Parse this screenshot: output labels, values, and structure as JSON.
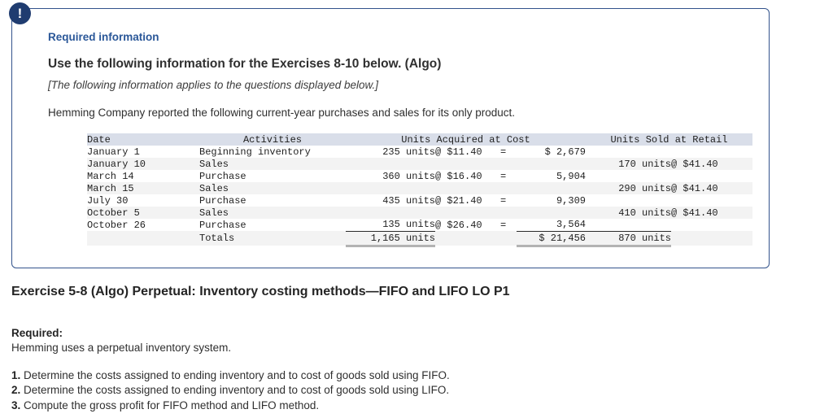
{
  "colors": {
    "accent_navy": "#33538c",
    "icon_navy": "#1f3c70",
    "heading_blue": "#2a5798",
    "table_header_bg": "#d9dee9",
    "stripe_bg": "#f3f3f3"
  },
  "callout": {
    "icon": "exclamation-icon",
    "icon_glyph": "!",
    "heading": "Required information",
    "title": "Use the following information for the Exercises 8-10 below. (Algo)",
    "note": "[The following information applies to the questions displayed below.]",
    "intro": "Hemming Company reported the following current-year purchases and sales for its only product."
  },
  "table": {
    "headers": {
      "date": "Date",
      "activities": "Activities",
      "acquired": "Units Acquired at Cost",
      "sold": "Units Sold at Retail"
    },
    "rows": [
      {
        "date": "January 1",
        "activity": "Beginning inventory",
        "units_acq": "235 units",
        "at_cost": "@ $11.40",
        "eq": "=",
        "amount": "$ 2,679",
        "units_sold": "",
        "at_retail": ""
      },
      {
        "date": "January 10",
        "activity": "Sales",
        "units_acq": "",
        "at_cost": "",
        "eq": "",
        "amount": "",
        "units_sold": "170 units",
        "at_retail": "@ $41.40"
      },
      {
        "date": "March 14",
        "activity": "Purchase",
        "units_acq": "360 units",
        "at_cost": "@ $16.40",
        "eq": "=",
        "amount": "5,904",
        "units_sold": "",
        "at_retail": ""
      },
      {
        "date": "March 15",
        "activity": "Sales",
        "units_acq": "",
        "at_cost": "",
        "eq": "",
        "amount": "",
        "units_sold": "290 units",
        "at_retail": "@ $41.40"
      },
      {
        "date": "July 30",
        "activity": "Purchase",
        "units_acq": "435 units",
        "at_cost": "@ $21.40",
        "eq": "=",
        "amount": "9,309",
        "units_sold": "",
        "at_retail": ""
      },
      {
        "date": "October 5",
        "activity": "Sales",
        "units_acq": "",
        "at_cost": "",
        "eq": "",
        "amount": "",
        "units_sold": "410 units",
        "at_retail": "@ $41.40"
      },
      {
        "date": "October 26",
        "activity": "Purchase",
        "units_acq": "135 units",
        "at_cost": "@ $26.40",
        "eq": "=",
        "amount": "3,564",
        "units_sold": "",
        "at_retail": "",
        "rules": "dark"
      },
      {
        "date": "",
        "activity": "Totals",
        "units_acq": "1,165 units",
        "at_cost": "",
        "eq": "",
        "amount": "$ 21,456",
        "units_sold": "870 units",
        "at_retail": "",
        "rules": "gray",
        "total": true
      }
    ]
  },
  "exercise": {
    "title": "Exercise 5-8 (Algo) Perpetual: Inventory costing methods—FIFO and LIFO LO P1",
    "required_label": "Required:",
    "required_text": "Hemming uses a perpetual inventory system.",
    "items": [
      {
        "num": "1.",
        "text": "Determine the costs assigned to ending inventory and to cost of goods sold using FIFO."
      },
      {
        "num": "2.",
        "text": "Determine the costs assigned to ending inventory and to cost of goods sold using LIFO."
      },
      {
        "num": "3.",
        "text": "Compute the gross profit for FIFO method and LIFO method."
      }
    ]
  }
}
